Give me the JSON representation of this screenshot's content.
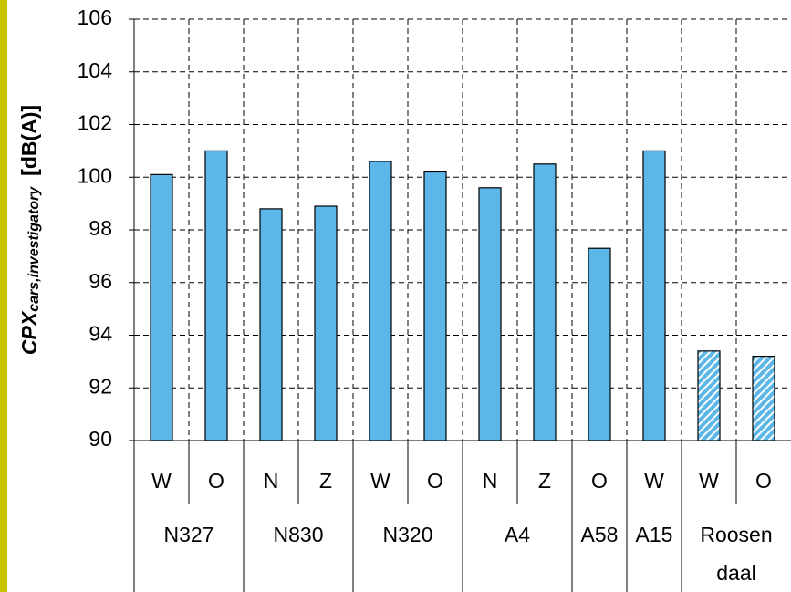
{
  "chart_data": {
    "type": "bar",
    "ylabel": "CPX",
    "ylabel_sub": "cars,investigatory",
    "ylabel_unit": "[dB(A)]",
    "categories": [
      "W",
      "O",
      "N",
      "Z",
      "W",
      "O",
      "N",
      "Z",
      "O",
      "W",
      "W",
      "O"
    ],
    "values": [
      100.1,
      101.0,
      98.8,
      98.9,
      100.6,
      100.2,
      99.6,
      100.5,
      97.3,
      101.0,
      93.4,
      93.2
    ],
    "hatched": [
      false,
      false,
      false,
      false,
      false,
      false,
      false,
      false,
      false,
      false,
      true,
      true
    ],
    "groups": [
      {
        "label": "N327",
        "size": 2
      },
      {
        "label": "N830",
        "size": 2
      },
      {
        "label": "N320",
        "size": 2
      },
      {
        "label": "A4",
        "size": 2
      },
      {
        "label": "A58",
        "size": 1
      },
      {
        "label": "A15",
        "size": 1
      },
      {
        "label": [
          "Roosen",
          "daal"
        ],
        "size": 2
      }
    ],
    "color": "#5cb7e8",
    "ylim": [
      90,
      106
    ],
    "yticks": [
      90,
      92,
      94,
      96,
      98,
      100,
      102,
      104,
      106
    ],
    "grid": true
  }
}
